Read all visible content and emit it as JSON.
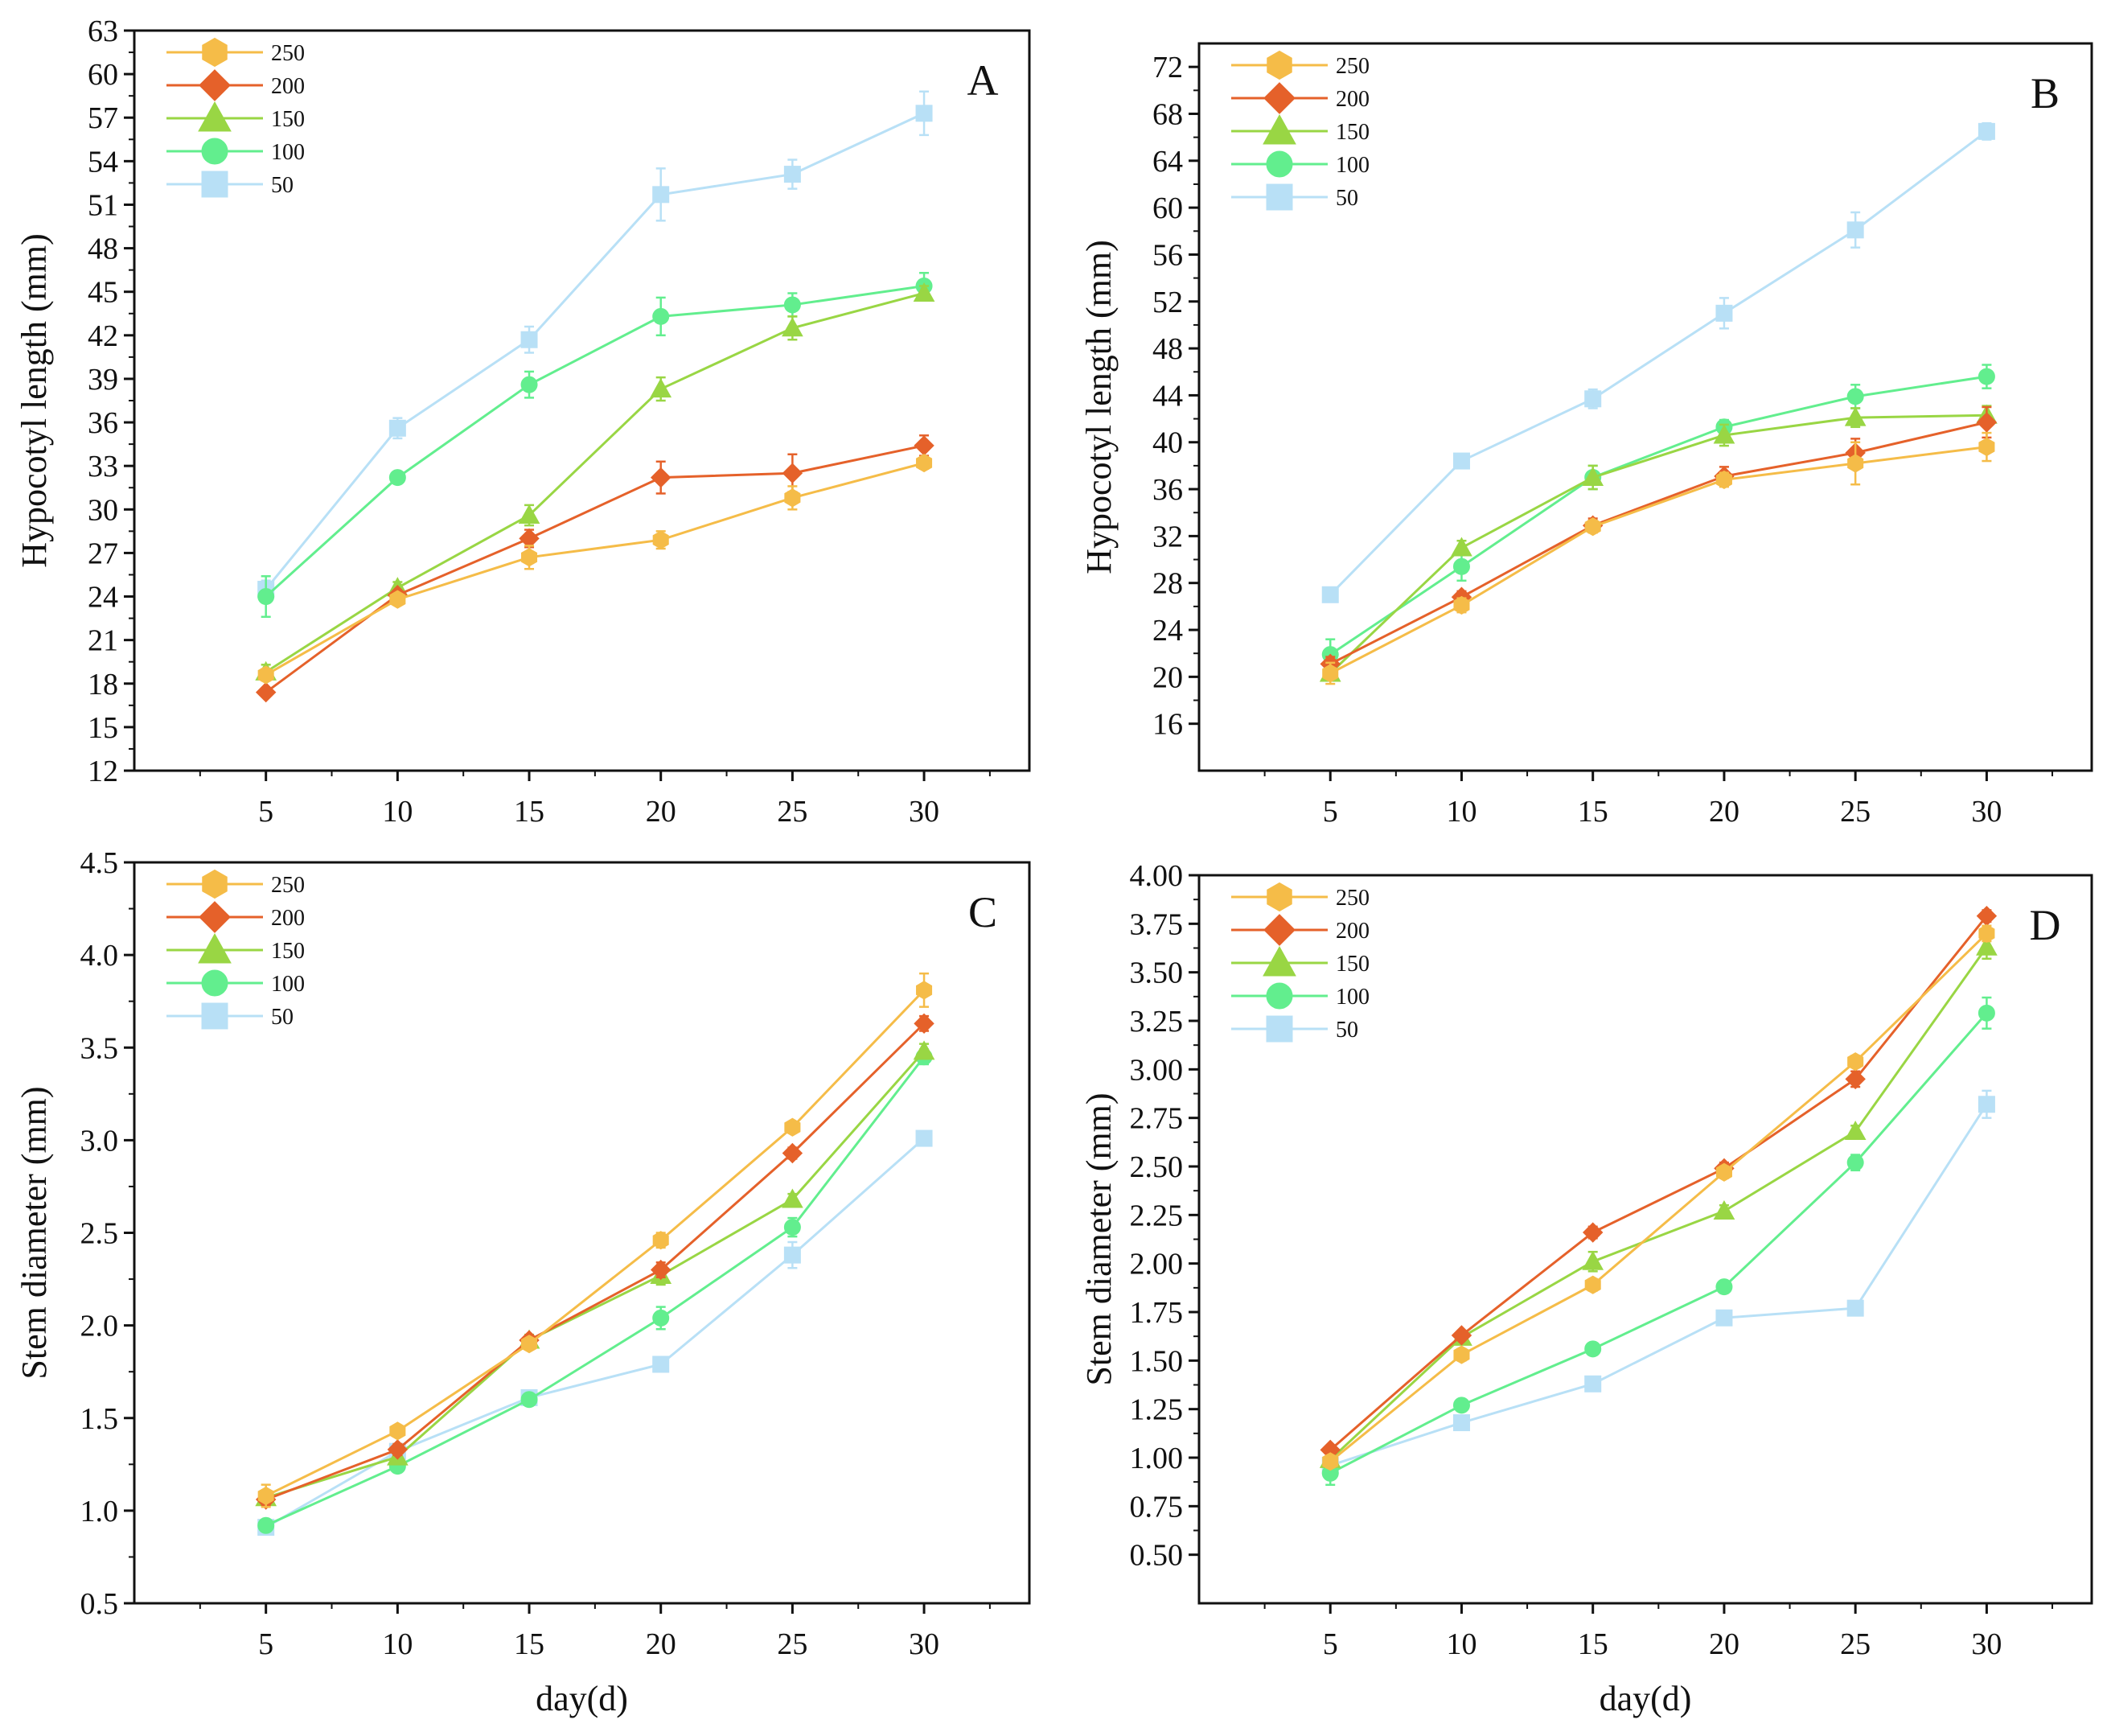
{
  "colors": {
    "s250": "#F5BC48",
    "s200": "#E5612A",
    "s150": "#99D644",
    "s100": "#62EE8E",
    "s50": "#B8E0F6"
  },
  "legend": [
    {
      "key": "s250",
      "label": "250",
      "marker": "hexagon"
    },
    {
      "key": "s200",
      "label": "200",
      "marker": "diamond"
    },
    {
      "key": "s150",
      "label": "150",
      "marker": "triangle"
    },
    {
      "key": "s100",
      "label": "100",
      "marker": "circle"
    },
    {
      "key": "s50",
      "label": "50",
      "marker": "square"
    }
  ],
  "x_title": "day(d)",
  "chart_data": [
    {
      "id": "A",
      "type": "line",
      "panel_label": "A",
      "xlabel": "",
      "ylabel": "Hypocotyl length (mm)",
      "x": [
        5,
        10,
        15,
        20,
        25,
        30
      ],
      "x_ticks": [
        "5",
        "10",
        "15",
        "20",
        "25",
        "30"
      ],
      "xlim": [
        0,
        34
      ],
      "ylim": [
        12,
        63
      ],
      "y_ticks": [
        "12",
        "15",
        "18",
        "21",
        "24",
        "27",
        "30",
        "33",
        "36",
        "39",
        "42",
        "45",
        "48",
        "51",
        "54",
        "57",
        "60",
        "63"
      ],
      "series": [
        {
          "key": "s250",
          "name": "250",
          "values": [
            18.6,
            23.8,
            26.7,
            27.9,
            30.8,
            33.2
          ],
          "errors": [
            0.4,
            0.3,
            0.8,
            0.6,
            0.8,
            0.4
          ]
        },
        {
          "key": "s200",
          "name": "200",
          "values": [
            17.4,
            24.1,
            28.0,
            32.2,
            32.5,
            34.4
          ],
          "errors": [
            0.2,
            0.3,
            0.6,
            1.1,
            1.3,
            0.7
          ]
        },
        {
          "key": "s150",
          "name": "150",
          "values": [
            18.8,
            24.6,
            29.6,
            38.3,
            42.5,
            44.9
          ],
          "errors": [
            0.5,
            0.4,
            0.7,
            0.8,
            0.8,
            0.5
          ]
        },
        {
          "key": "s100",
          "name": "100",
          "values": [
            24.0,
            32.2,
            38.6,
            43.3,
            44.1,
            45.4
          ],
          "errors": [
            1.4,
            0.4,
            0.9,
            1.3,
            0.8,
            0.9
          ]
        },
        {
          "key": "s50",
          "name": "50",
          "values": [
            24.5,
            35.6,
            41.7,
            51.7,
            53.1,
            57.3
          ],
          "errors": [
            0.6,
            0.7,
            0.9,
            1.8,
            1.0,
            1.5
          ]
        }
      ]
    },
    {
      "id": "B",
      "type": "line",
      "panel_label": "B",
      "xlabel": "",
      "ylabel": "Hypocotyl length (mm)",
      "x": [
        5,
        10,
        15,
        20,
        25,
        30
      ],
      "x_ticks": [
        "5",
        "10",
        "15",
        "20",
        "25",
        "30"
      ],
      "xlim": [
        0,
        34
      ],
      "ylim": [
        12,
        74
      ],
      "y_ticks": [
        "16",
        "20",
        "24",
        "28",
        "32",
        "36",
        "40",
        "44",
        "48",
        "52",
        "56",
        "60",
        "64",
        "68",
        "72"
      ],
      "series": [
        {
          "key": "s250",
          "name": "250",
          "values": [
            20.3,
            26.1,
            32.8,
            36.8,
            38.2,
            39.6
          ],
          "errors": [
            0.9,
            0.6,
            0.5,
            0.6,
            1.8,
            1.2
          ]
        },
        {
          "key": "s200",
          "name": "200",
          "values": [
            21.1,
            26.8,
            32.9,
            37.1,
            39.1,
            41.7
          ],
          "errors": [
            0.6,
            0.5,
            0.6,
            0.8,
            1.2,
            1.3
          ]
        },
        {
          "key": "s150",
          "name": "150",
          "values": [
            20.3,
            31.0,
            37.0,
            40.6,
            42.1,
            42.3
          ],
          "errors": [
            0.5,
            0.6,
            1.0,
            0.9,
            0.8,
            0.8
          ]
        },
        {
          "key": "s100",
          "name": "100",
          "values": [
            21.9,
            29.4,
            37.0,
            41.3,
            43.9,
            45.6
          ],
          "errors": [
            1.3,
            1.2,
            1.0,
            0.6,
            1.0,
            1.0
          ]
        },
        {
          "key": "s50",
          "name": "50",
          "values": [
            27.0,
            38.4,
            43.7,
            51.0,
            58.1,
            66.5
          ],
          "errors": [
            0.6,
            0.5,
            0.8,
            1.3,
            1.5,
            0.7
          ]
        }
      ]
    },
    {
      "id": "C",
      "type": "line",
      "panel_label": "C",
      "xlabel": "day(d)",
      "ylabel": "Stem diameter (mm)",
      "x": [
        5,
        10,
        15,
        20,
        25,
        30
      ],
      "x_ticks": [
        "5",
        "10",
        "15",
        "20",
        "25",
        "30"
      ],
      "xlim": [
        0,
        34
      ],
      "ylim": [
        0.5,
        4.5
      ],
      "y_ticks": [
        "0.5",
        "1.0",
        "1.5",
        "2.0",
        "2.5",
        "3.0",
        "3.5",
        "4.0",
        "4.5"
      ],
      "series": [
        {
          "key": "s250",
          "name": "250",
          "values": [
            1.08,
            1.43,
            1.9,
            2.46,
            3.07,
            3.81
          ],
          "errors": [
            0.06,
            0.02,
            0.03,
            0.04,
            0.03,
            0.09
          ]
        },
        {
          "key": "s200",
          "name": "200",
          "values": [
            1.06,
            1.33,
            1.92,
            2.3,
            2.93,
            3.63
          ],
          "errors": [
            0.03,
            0.03,
            0.02,
            0.04,
            0.03,
            0.04
          ]
        },
        {
          "key": "s150",
          "name": "150",
          "values": [
            1.07,
            1.29,
            1.92,
            2.27,
            2.68,
            3.48
          ],
          "errors": [
            0.03,
            0.03,
            0.03,
            0.05,
            0.03,
            0.04
          ]
        },
        {
          "key": "s100",
          "name": "100",
          "values": [
            0.92,
            1.24,
            1.6,
            2.04,
            2.53,
            3.45
          ],
          "errors": [
            0.03,
            0.03,
            0.02,
            0.06,
            0.05,
            0.04
          ]
        },
        {
          "key": "s50",
          "name": "50",
          "values": [
            0.91,
            1.32,
            1.61,
            1.79,
            2.38,
            3.01
          ],
          "errors": [
            0.02,
            0.04,
            0.02,
            0.02,
            0.07,
            0.03
          ]
        }
      ]
    },
    {
      "id": "D",
      "type": "line",
      "panel_label": "D",
      "xlabel": "day(d)",
      "ylabel": "Stem diameter (mm)",
      "x": [
        5,
        10,
        15,
        20,
        25,
        30
      ],
      "x_ticks": [
        "5",
        "10",
        "15",
        "20",
        "25",
        "30"
      ],
      "xlim": [
        0,
        34
      ],
      "ylim": [
        0.25,
        4.0
      ],
      "y_ticks": [
        "0.50",
        "0.75",
        "1.00",
        "1.25",
        "1.50",
        "1.75",
        "2.00",
        "2.25",
        "2.50",
        "2.75",
        "3.00",
        "3.25",
        "3.50",
        "3.75",
        "4.00"
      ],
      "series": [
        {
          "key": "s250",
          "name": "250",
          "values": [
            0.98,
            1.53,
            1.89,
            2.47,
            3.04,
            3.7
          ],
          "errors": [
            0.03,
            0.03,
            0.03,
            0.03,
            0.03,
            0.04
          ]
        },
        {
          "key": "s200",
          "name": "200",
          "values": [
            1.04,
            1.63,
            2.16,
            2.49,
            2.95,
            3.79
          ],
          "errors": [
            0.02,
            0.02,
            0.03,
            0.03,
            0.04,
            0.03
          ]
        },
        {
          "key": "s150",
          "name": "150",
          "values": [
            0.99,
            1.62,
            2.01,
            2.27,
            2.68,
            3.63
          ],
          "errors": [
            0.03,
            0.03,
            0.05,
            0.03,
            0.03,
            0.06
          ]
        },
        {
          "key": "s100",
          "name": "100",
          "values": [
            0.92,
            1.27,
            1.56,
            1.88,
            2.52,
            3.29
          ],
          "errors": [
            0.06,
            0.03,
            0.03,
            0.03,
            0.04,
            0.08
          ]
        },
        {
          "key": "s50",
          "name": "50",
          "values": [
            0.96,
            1.18,
            1.38,
            1.72,
            1.77,
            2.82
          ],
          "errors": [
            0.03,
            0.03,
            0.03,
            0.03,
            0.03,
            0.07
          ]
        }
      ]
    }
  ]
}
